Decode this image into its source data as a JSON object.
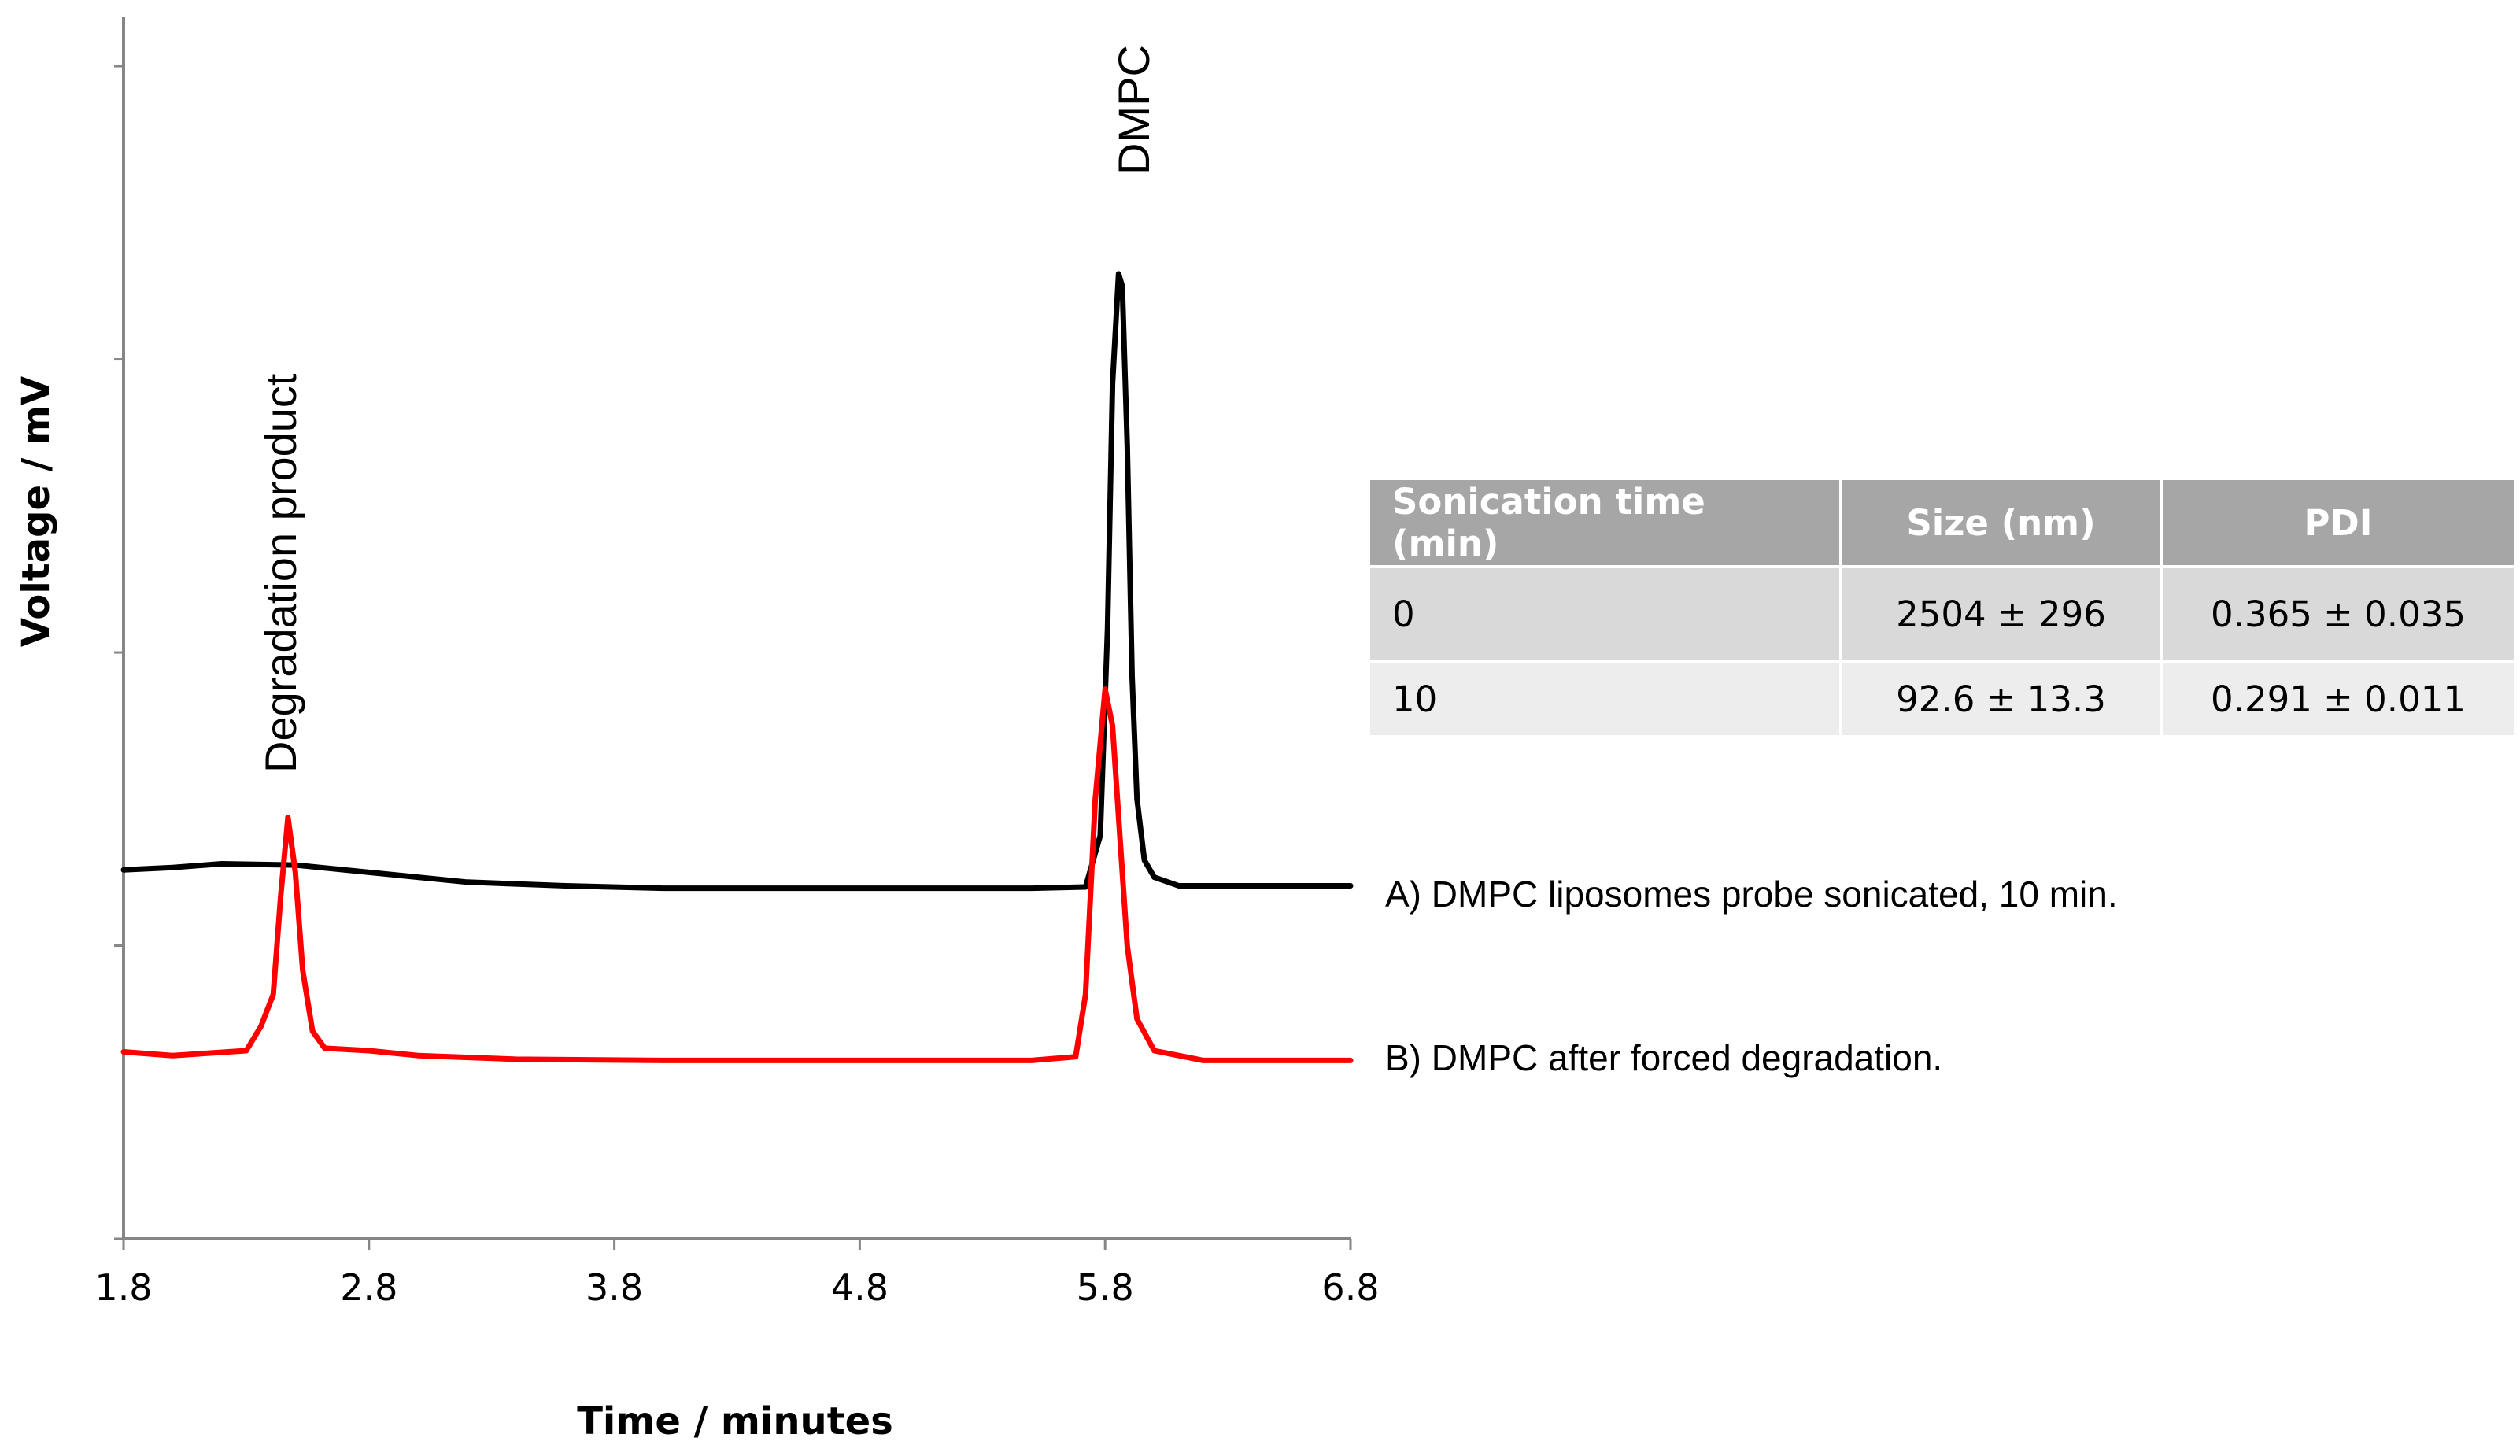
{
  "chart_data": {
    "type": "line",
    "title": "",
    "xlabel": "Time / minutes",
    "ylabel": "Voltage / mV",
    "xlim": [
      1.8,
      6.8
    ],
    "ylim": [
      0,
      100
    ],
    "x_ticks": [
      "1.8",
      "2.8",
      "3.8",
      "4.8",
      "5.8",
      "6.8"
    ],
    "y_ticks": [
      0,
      24,
      48,
      72,
      96
    ],
    "grid": false,
    "legend": "none",
    "series": [
      {
        "name": "A)  DMPC liposomes probe sonicated, 10 min.",
        "color": "#000000",
        "points": [
          [
            1.8,
            30.2
          ],
          [
            2.0,
            30.4
          ],
          [
            2.2,
            30.7
          ],
          [
            2.5,
            30.6
          ],
          [
            2.8,
            30.0
          ],
          [
            3.2,
            29.2
          ],
          [
            3.6,
            28.9
          ],
          [
            4.0,
            28.7
          ],
          [
            4.8,
            28.7
          ],
          [
            5.5,
            28.7
          ],
          [
            5.72,
            28.8
          ],
          [
            5.78,
            33
          ],
          [
            5.81,
            50
          ],
          [
            5.83,
            70
          ],
          [
            5.855,
            79
          ],
          [
            5.87,
            78
          ],
          [
            5.89,
            65
          ],
          [
            5.91,
            46
          ],
          [
            5.93,
            36
          ],
          [
            5.96,
            31
          ],
          [
            6.0,
            29.6
          ],
          [
            6.1,
            28.9
          ],
          [
            6.3,
            28.9
          ],
          [
            6.8,
            28.9
          ]
        ]
      },
      {
        "name": "B) DMPC after forced degradation.",
        "color": "#ff0000",
        "points": [
          [
            1.8,
            15.3
          ],
          [
            2.0,
            15.0
          ],
          [
            2.3,
            15.4
          ],
          [
            2.36,
            17.4
          ],
          [
            2.41,
            20.0
          ],
          [
            2.44,
            28.0
          ],
          [
            2.47,
            34.5
          ],
          [
            2.5,
            30.0
          ],
          [
            2.53,
            22.0
          ],
          [
            2.57,
            17.0
          ],
          [
            2.62,
            15.6
          ],
          [
            2.8,
            15.4
          ],
          [
            3.0,
            15.0
          ],
          [
            3.4,
            14.7
          ],
          [
            4.0,
            14.6
          ],
          [
            4.8,
            14.6
          ],
          [
            5.5,
            14.6
          ],
          [
            5.68,
            14.9
          ],
          [
            5.72,
            20
          ],
          [
            5.76,
            36
          ],
          [
            5.8,
            45
          ],
          [
            5.83,
            42
          ],
          [
            5.86,
            33
          ],
          [
            5.89,
            24
          ],
          [
            5.93,
            18
          ],
          [
            6.0,
            15.4
          ],
          [
            6.2,
            14.6
          ],
          [
            6.8,
            14.6
          ]
        ]
      }
    ],
    "annotations": [
      {
        "text": "DMPC",
        "x": 5.89
      },
      {
        "text": "Degradation product",
        "x": 2.47
      }
    ],
    "table": {
      "headers": [
        "Sonication time (min)",
        "Size (nm)",
        "PDI"
      ],
      "rows": [
        [
          "0",
          "2504 ± 296",
          "0.365 ± 0.035"
        ],
        [
          "10",
          "92.6 ± 13.3",
          "0.291 ± 0.011"
        ]
      ]
    }
  }
}
